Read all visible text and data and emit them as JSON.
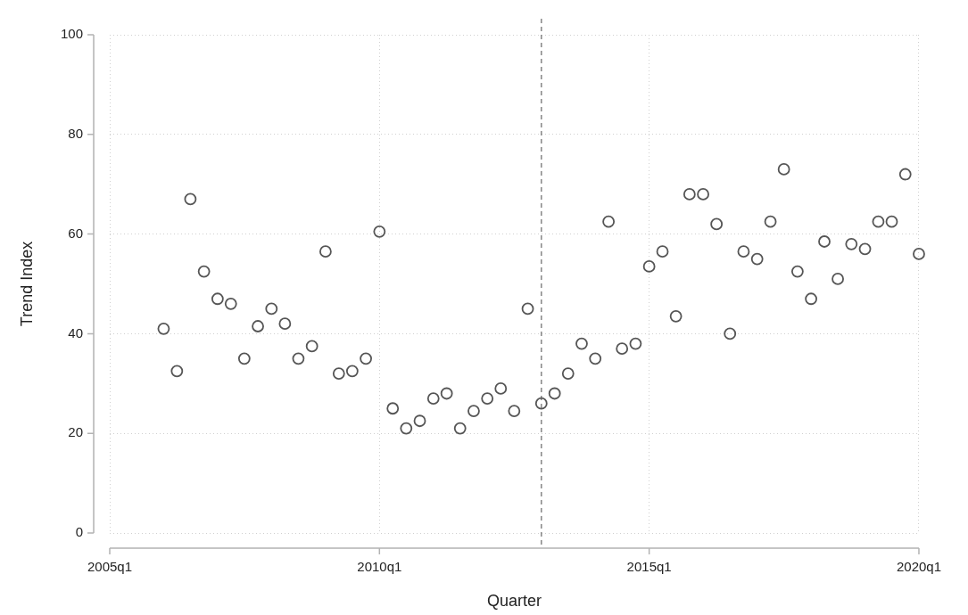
{
  "chart_data": {
    "type": "scatter",
    "xlabel": "Quarter",
    "ylabel": "Trend Index",
    "x": [
      "2006-01",
      "2006-04",
      "2006-07",
      "2006-10",
      "2007-01",
      "2007-04",
      "2007-07",
      "2007-10",
      "2008-01",
      "2008-04",
      "2008-07",
      "2008-10",
      "2009-01",
      "2009-04",
      "2009-07",
      "2009-10",
      "2010-01",
      "2010-04",
      "2010-07",
      "2010-10",
      "2011-01",
      "2011-04",
      "2011-07",
      "2011-10",
      "2012-01",
      "2012-04",
      "2012-07",
      "2012-10",
      "2013-01",
      "2013-04",
      "2013-07",
      "2013-10",
      "2014-01",
      "2014-04",
      "2014-07",
      "2014-10",
      "2015-01",
      "2015-04",
      "2015-07",
      "2015-10",
      "2016-01",
      "2016-04",
      "2016-07",
      "2016-10",
      "2017-01",
      "2017-04",
      "2017-07",
      "2017-10",
      "2018-01",
      "2018-04",
      "2018-07",
      "2018-10",
      "2019-01",
      "2019-04",
      "2019-07",
      "2019-10",
      "2020-01"
    ],
    "values": [
      41,
      32.5,
      67,
      52.5,
      47,
      46,
      35,
      41.5,
      45,
      42,
      35,
      37.5,
      56.5,
      32,
      32.5,
      35,
      60.5,
      25,
      21,
      22.5,
      27,
      28,
      21,
      24.5,
      27,
      29,
      24.5,
      45,
      26,
      28,
      32,
      38,
      35,
      62.5,
      37,
      38,
      53.5,
      56.5,
      43.5,
      68,
      68,
      62,
      40,
      56.5,
      55,
      62.5,
      73,
      52.5,
      47,
      58.5,
      51,
      58,
      57,
      62.5,
      62.5,
      72,
      56
    ],
    "color": "#555555",
    "marker": "circle",
    "xlim": [
      "2005-01",
      "2020-01"
    ],
    "ylim": [
      0,
      100
    ],
    "xticks": [
      {
        "value": "2005-01",
        "label": "2005q1"
      },
      {
        "value": "2010-01",
        "label": "2010q1"
      },
      {
        "value": "2015-01",
        "label": "2015q1"
      },
      {
        "value": "2020-01",
        "label": "2020q1"
      }
    ],
    "yticks": [
      0,
      20,
      40,
      60,
      80,
      100
    ],
    "grid": true,
    "ref_lines": [
      {
        "axis": "x",
        "value": "2013-01",
        "line_style": "dashed",
        "color": "#8c8c8c"
      }
    ]
  }
}
